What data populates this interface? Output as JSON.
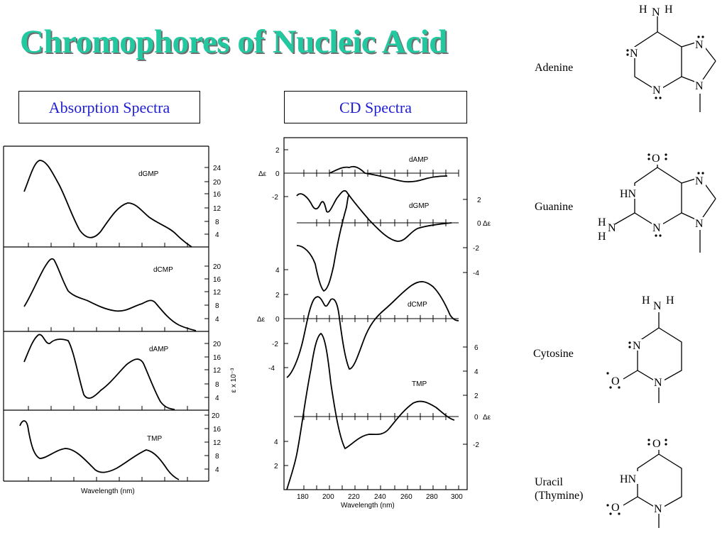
{
  "title": "Chromophores of Nucleic Acid",
  "boxes": {
    "absorption": "Absorption Spectra",
    "cd": "CD Spectra"
  },
  "absorption": {
    "xlabel": "Wavelength  (nm)",
    "ylabel": "ε x 10⁻³",
    "panels": [
      {
        "name": "dGMP",
        "ticks": [
          "24",
          "20",
          "16",
          "12",
          "8",
          "4"
        ]
      },
      {
        "name": "dCMP",
        "ticks": [
          "20",
          "16",
          "12",
          "8",
          "4"
        ]
      },
      {
        "name": "dAMP",
        "ticks": [
          "20",
          "16",
          "12",
          "8",
          "4"
        ]
      },
      {
        "name": "TMP",
        "ticks": [
          "20",
          "16",
          "12",
          "8",
          "4"
        ]
      }
    ]
  },
  "cd": {
    "xlabel": "Wavelength (nm)",
    "delta": "Δε",
    "x_ticks": [
      "180",
      "200",
      "220",
      "240",
      "260",
      "280",
      "300"
    ],
    "series_labels": [
      "dAMP",
      "dGMP",
      "dCMP",
      "TMP"
    ],
    "left_ticks_top": [
      "2",
      "0",
      "-2"
    ],
    "right_ticks_g": [
      "2",
      "0",
      "-2",
      "-4"
    ],
    "left_ticks_c": [
      "4",
      "2",
      "0",
      "-2",
      "-4"
    ],
    "right_ticks_t": [
      "6",
      "4",
      "2",
      "0",
      "-2"
    ],
    "left_ticks_bottom": [
      "4",
      "2"
    ]
  },
  "molecules": {
    "adenine": "Adenine",
    "guanine": "Guanine",
    "cytosine": "Cytosine",
    "uracil": "Uracil",
    "thymine": "(Thymine)",
    "atoms": {
      "N": "N",
      "H": "H",
      "O": "O",
      "HN": "HN"
    }
  }
}
